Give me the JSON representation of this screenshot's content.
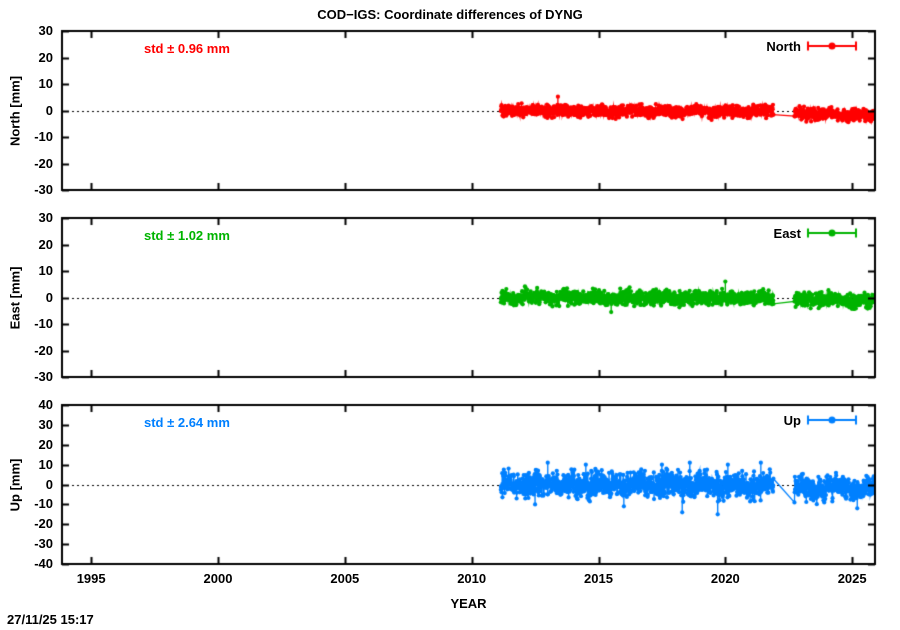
{
  "title": "COD−IGS: Coordinate differences of DYNG",
  "timestamp": "27/11/25 15:17",
  "chart_data": {
    "type": "scatter",
    "title": "COD−IGS: Coordinate differences of DYNG",
    "xlabel": "YEAR",
    "xlim": [
      1993.85,
      2025.9
    ],
    "x_ticks": [
      1995,
      2000,
      2005,
      2010,
      2015,
      2020,
      2025
    ],
    "grid": false,
    "zero_line": "dotted",
    "legend_position": "top-right-inside",
    "panels": [
      {
        "name": "North",
        "ylabel": "North [mm]",
        "ylim": [
          -30,
          30
        ],
        "y_ticks": [
          30,
          20,
          10,
          0,
          -10,
          -20,
          -30
        ],
        "color": "#ff0000",
        "std_label": "std ± 0.96 mm",
        "legend_label": "North",
        "series": {
          "style": "points-with-line",
          "start": 2011.15,
          "end": 2025.85,
          "gap": [
            2021.9,
            2022.72
          ],
          "mean_pre": [
            0.1,
            -0.4
          ],
          "mean_post": [
            -1.0,
            -2.2
          ],
          "sigma": 1.05,
          "wobble": 0.33,
          "seed": 101,
          "outliers": [
            [
              2013.4,
              5.2
            ]
          ]
        }
      },
      {
        "name": "East",
        "ylabel": "East [mm]",
        "ylim": [
          -30,
          30
        ],
        "y_ticks": [
          30,
          20,
          10,
          0,
          -10,
          -20,
          -30
        ],
        "color": "#00b400",
        "std_label": "std ± 1.02 mm",
        "legend_label": "East",
        "series": {
          "style": "points-with-line",
          "start": 2011.15,
          "end": 2025.85,
          "gap": [
            2021.9,
            2022.72
          ],
          "mean_pre": [
            0.1,
            -0.2
          ],
          "mean_post": [
            -0.8,
            -1.3
          ],
          "sigma": 1.25,
          "wobble": 0.38,
          "seed": 202,
          "outliers": [
            [
              2012.1,
              4.2
            ],
            [
              2015.5,
              -5.5
            ],
            [
              2020.0,
              6.0
            ]
          ]
        }
      },
      {
        "name": "Up",
        "ylabel": "Up [mm]",
        "ylim": [
          -40,
          40
        ],
        "y_ticks": [
          40,
          30,
          20,
          10,
          0,
          -10,
          -20,
          -30,
          -40
        ],
        "color": "#0080ff",
        "std_label": "std ± 2.64 mm",
        "legend_label": "Up",
        "series": {
          "style": "points-with-line",
          "start": 2011.15,
          "end": 2025.85,
          "gap": [
            2021.9,
            2022.72
          ],
          "mean_pre": [
            0.3,
            -0.5
          ],
          "mean_post": [
            -1.5,
            -2.0
          ],
          "sigma": 2.9,
          "wobble": 0.85,
          "seed": 303,
          "post_gap_first": -9,
          "outliers": [
            [
              2012.5,
              -10
            ],
            [
              2013.0,
              11
            ],
            [
              2014.5,
              10
            ],
            [
              2016.0,
              -11
            ],
            [
              2017.5,
              10
            ],
            [
              2018.3,
              -14
            ],
            [
              2018.6,
              11
            ],
            [
              2019.7,
              -15
            ],
            [
              2020.1,
              10
            ],
            [
              2021.4,
              11
            ],
            [
              2023.9,
              -9
            ],
            [
              2025.2,
              -12
            ]
          ]
        }
      }
    ]
  }
}
